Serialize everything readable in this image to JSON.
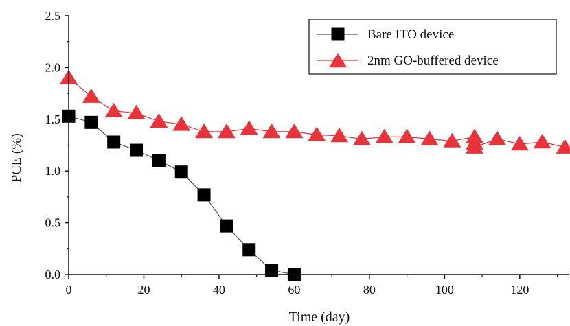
{
  "chart_data": {
    "type": "line",
    "title": "",
    "xlabel": "Time (day)",
    "ylabel": "PCE (%)",
    "xlim": [
      0,
      133
    ],
    "ylim": [
      0,
      2.5
    ],
    "x_ticks": [
      0,
      20,
      40,
      60,
      80,
      100,
      120
    ],
    "y_ticks": [
      0.0,
      0.5,
      1.0,
      1.5,
      2.0,
      2.5
    ],
    "x_tick_labels": [
      "0",
      "20",
      "40",
      "60",
      "80",
      "100",
      "120"
    ],
    "y_tick_labels": [
      "0.0",
      "0.5",
      "1.0",
      "1.5",
      "2.0",
      "2.5"
    ],
    "grid": false,
    "legend_position": "top-right",
    "series": [
      {
        "name": "Bare ITO device",
        "marker": "square",
        "color": "#000000",
        "x": [
          0,
          6,
          12,
          18,
          24,
          30,
          36,
          42,
          48,
          54,
          60
        ],
        "y": [
          1.53,
          1.47,
          1.28,
          1.2,
          1.1,
          0.99,
          0.77,
          0.47,
          0.24,
          0.04,
          0.0
        ]
      },
      {
        "name": "2nm GO-buffered device",
        "marker": "triangle",
        "color": "#e8333a",
        "x": [
          0,
          6,
          12,
          18,
          24,
          30,
          36,
          42,
          48,
          54,
          60,
          66,
          72,
          78,
          84,
          90,
          96,
          102,
          108,
          108,
          108,
          114,
          120,
          126,
          132
        ],
        "y": [
          1.9,
          1.72,
          1.58,
          1.56,
          1.48,
          1.45,
          1.38,
          1.38,
          1.41,
          1.38,
          1.38,
          1.35,
          1.34,
          1.31,
          1.33,
          1.33,
          1.31,
          1.29,
          1.33,
          1.27,
          1.23,
          1.31,
          1.26,
          1.28,
          1.23
        ]
      }
    ]
  }
}
